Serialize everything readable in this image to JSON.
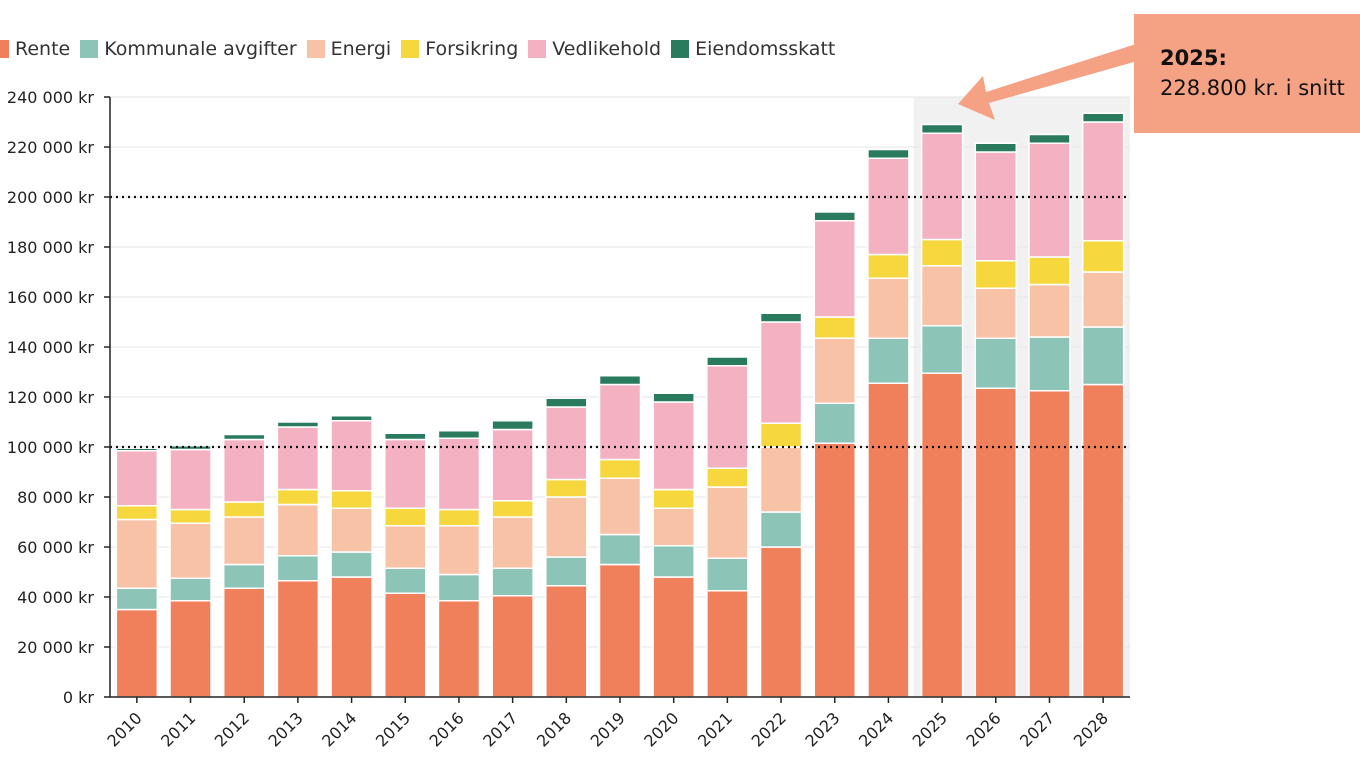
{
  "legend": [
    {
      "name": "Rente",
      "color": "#f07f5c"
    },
    {
      "name": "Kommunale avgifter",
      "color": "#8cc4b7"
    },
    {
      "name": "Energi",
      "color": "#f8c2a6"
    },
    {
      "name": "Forsikring",
      "color": "#f6d83e"
    },
    {
      "name": "Vedlikehold",
      "color": "#f3b1c2"
    },
    {
      "name": "Eiendomsskatt",
      "color": "#2a7a5d"
    }
  ],
  "callout": {
    "title": "2025:",
    "text": "228.800 kr. i snitt",
    "color": "#f4a283"
  },
  "chart_data": {
    "type": "bar",
    "stacked": true,
    "categories": [
      "2010",
      "2011",
      "2012",
      "2013",
      "2014",
      "2015",
      "2016",
      "2017",
      "2018",
      "2019",
      "2020",
      "2021",
      "2022",
      "2023",
      "2024",
      "2025",
      "2026",
      "2027",
      "2028"
    ],
    "ylim": [
      0,
      240000
    ],
    "yticks": [
      0,
      20000,
      40000,
      60000,
      80000,
      100000,
      120000,
      140000,
      160000,
      180000,
      200000,
      220000,
      240000
    ],
    "ytick_labels": [
      "0 kr",
      "20 000 kr",
      "40 000 kr",
      "60 000 kr",
      "80 000 kr",
      "100 000 kr",
      "120 000 kr",
      "140 000 kr",
      "160 000 kr",
      "180 000 kr",
      "200 000 kr",
      "220 000 kr",
      "240 000 kr"
    ],
    "reference_lines": [
      100000,
      200000
    ],
    "highlight_from": "2025",
    "grid": true,
    "legend_position": "top-left",
    "series": [
      {
        "name": "Rente",
        "color": "#f07f5c",
        "values": [
          35000,
          38500,
          43500,
          46500,
          48000,
          41500,
          38500,
          40500,
          44500,
          53000,
          48000,
          42500,
          60000,
          101500,
          125500,
          129500,
          123500,
          122500,
          125000
        ]
      },
      {
        "name": "Kommunale avgifter",
        "color": "#8cc4b7",
        "values": [
          8500,
          9000,
          9500,
          10000,
          10000,
          10000,
          10500,
          11000,
          11500,
          12000,
          12500,
          13000,
          14000,
          16000,
          18000,
          19000,
          20000,
          21500,
          23000
        ]
      },
      {
        "name": "Energi",
        "color": "#f8c2a6",
        "values": [
          27500,
          22000,
          19000,
          20500,
          17500,
          17000,
          19500,
          20500,
          24000,
          22500,
          15000,
          28500,
          26000,
          26000,
          24000,
          24000,
          20000,
          21000,
          22000
        ]
      },
      {
        "name": "Forsikring",
        "color": "#f6d83e",
        "values": [
          5500,
          5500,
          6000,
          6000,
          7000,
          7000,
          6500,
          6500,
          7000,
          7500,
          7500,
          7500,
          9500,
          8500,
          9500,
          10500,
          11000,
          11000,
          12500
        ]
      },
      {
        "name": "Vedlikehold",
        "color": "#f3b1c2",
        "values": [
          22000,
          24000,
          25000,
          25000,
          28000,
          27500,
          28500,
          28500,
          29000,
          30000,
          35000,
          41000,
          40500,
          38500,
          38500,
          42500,
          43500,
          45500,
          47500
        ]
      },
      {
        "name": "Eiendomsskatt",
        "color": "#2a7a5d",
        "values": [
          1000,
          1500,
          2000,
          2000,
          2000,
          2500,
          3000,
          3500,
          3500,
          3500,
          3500,
          3500,
          3500,
          3500,
          3500,
          3500,
          3500,
          3500,
          3500
        ]
      }
    ]
  }
}
